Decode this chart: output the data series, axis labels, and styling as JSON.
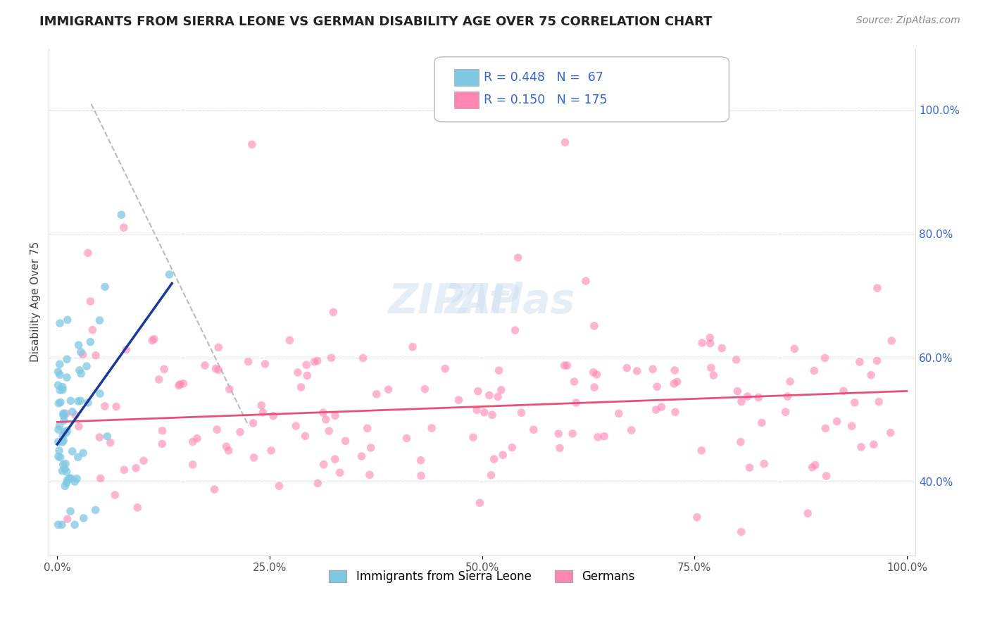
{
  "title": "IMMIGRANTS FROM SIERRA LEONE VS GERMAN DISABILITY AGE OVER 75 CORRELATION CHART",
  "source_text": "Source: ZipAtlas.com",
  "ylabel": "Disability Age Over 75",
  "legend_label1": "Immigrants from Sierra Leone",
  "legend_label2": "Germans",
  "r1": 0.448,
  "n1": 67,
  "r2": 0.15,
  "n2": 175,
  "color1": "#7ec8e3",
  "color2": "#ff85b3",
  "trendline1_color": "#1a3a9a",
  "trendline2_color": "#e8507a",
  "refline_color": "#bbbbbb",
  "xlim": [
    -0.01,
    1.01
  ],
  "ylim": [
    0.28,
    1.1
  ],
  "yticks_right": [
    0.4,
    0.6,
    0.8,
    1.0
  ],
  "xticklabels": [
    "0.0%",
    "25.0%",
    "50.0%",
    "75.0%",
    "100.0%"
  ],
  "yticklabels_right": [
    "40.0%",
    "60.0%",
    "80.0%",
    "100.0%"
  ],
  "title_fontsize": 13,
  "tick_fontsize": 11,
  "legend_fontsize": 12,
  "ylabel_fontsize": 11,
  "source_fontsize": 10,
  "seed1": 77,
  "seed2": 42
}
